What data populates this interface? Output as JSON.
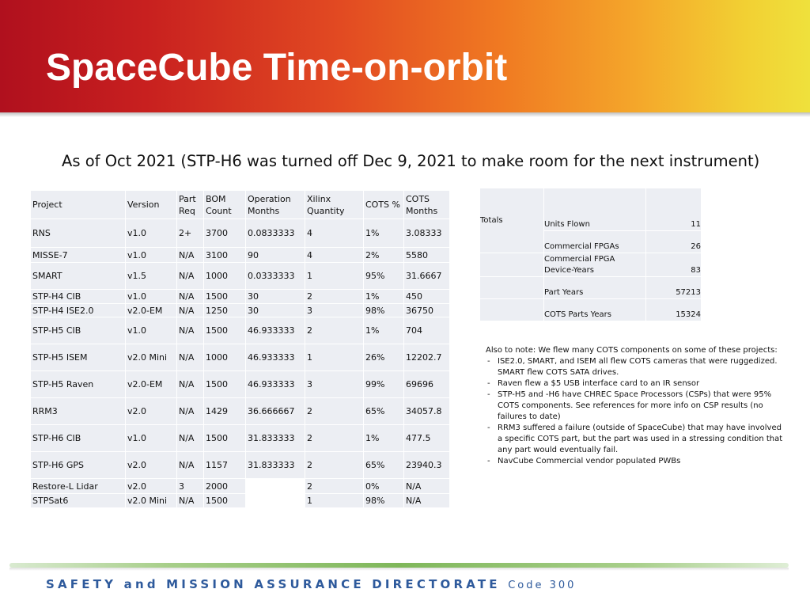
{
  "title": "SpaceCube Time-on-orbit",
  "subtitle": "As of Oct 2021 (STP-H6 was turned off Dec 9, 2021 to make room for the next instrument)",
  "main_table": {
    "headers": [
      "Project",
      "Version",
      "Part Req",
      "BOM Count",
      "Operation Months",
      "Xilinx Quantity",
      "COTS %",
      "COTS Months"
    ],
    "rows": [
      [
        "RNS",
        "v1.0",
        "2+",
        "3700",
        "0.0833333",
        "4",
        "1%",
        "3.08333"
      ],
      [
        "MISSE-7",
        "v1.0",
        "N/A",
        "3100",
        "90",
        "4",
        "2%",
        "5580"
      ],
      [
        "SMART",
        "v1.5",
        "N/A",
        "1000",
        "0.0333333",
        "1",
        "95%",
        "31.6667"
      ],
      [
        "STP-H4 CIB",
        "v1.0",
        "N/A",
        "1500",
        "30",
        "2",
        "1%",
        "450"
      ],
      [
        "STP-H4 ISE2.0",
        "v2.0-EM",
        "N/A",
        "1250",
        "30",
        "3",
        "98%",
        "36750"
      ],
      [
        "STP-H5 CIB",
        "v1.0",
        "N/A",
        "1500",
        "46.933333",
        "2",
        "1%",
        "704"
      ],
      [
        "STP-H5 ISEM",
        "v2.0 Mini",
        "N/A",
        "1000",
        "46.933333",
        "1",
        "26%",
        "12202.7"
      ],
      [
        "STP-H5 Raven",
        "v2.0-EM",
        "N/A",
        "1500",
        "46.933333",
        "3",
        "99%",
        "69696"
      ],
      [
        "RRM3",
        "v2.0",
        "N/A",
        "1429",
        "36.666667",
        "2",
        "65%",
        "34057.8"
      ],
      [
        "STP-H6 CIB",
        "v1.0",
        "N/A",
        "1500",
        "31.833333",
        "2",
        "1%",
        "477.5"
      ],
      [
        "STP-H6 GPS",
        "v2.0",
        "N/A",
        "1157",
        "31.833333",
        "2",
        "65%",
        "23940.3"
      ],
      [
        "Restore-L Lidar",
        "v2.0",
        "3",
        "2000",
        "",
        "2",
        "0%",
        "N/A"
      ],
      [
        "STPSat6",
        "v2.0 Mini",
        "N/A",
        "1500",
        "",
        "1",
        "98%",
        "N/A"
      ]
    ]
  },
  "totals": {
    "label": "Totals",
    "rows": [
      {
        "label": "Units Flown",
        "value": "11"
      },
      {
        "label": "Commercial FPGAs",
        "value": "26"
      },
      {
        "label": "Commercial FPGA  Device-Years",
        "value": "83"
      },
      {
        "label": "Part Years",
        "value": "57213"
      },
      {
        "label": "COTS Parts Years",
        "value": "15324"
      }
    ]
  },
  "notes": {
    "intro": "Also to note: We flew many COTS components on some of these projects:",
    "items": [
      "ISE2.0, SMART, and ISEM all flew COTS cameras that were ruggedized.  SMART flew COTS SATA drives.",
      "Raven flew a $5 USB interface card to an IR sensor",
      "STP-H5 and -H6 have CHREC Space Processors (CSPs) that were 95% COTS components.  See references for more info on CSP results (no failures to date)",
      "RRM3 suffered a failure (outside of SpaceCube) that may have involved a specific COTS part, but the part was used in a stressing condition that any part would eventually fail.",
      "NavCube Commercial vendor populated PWBs"
    ]
  },
  "footer": {
    "directorate": "SAFETY and MISSION ASSURANCE DIRECTORATE",
    "code": "Code 300"
  },
  "colors": {
    "header_start": "#b0101e",
    "header_end": "#efe13c",
    "footer_text": "#2e5a9c",
    "table_cell": "#eceef3"
  }
}
